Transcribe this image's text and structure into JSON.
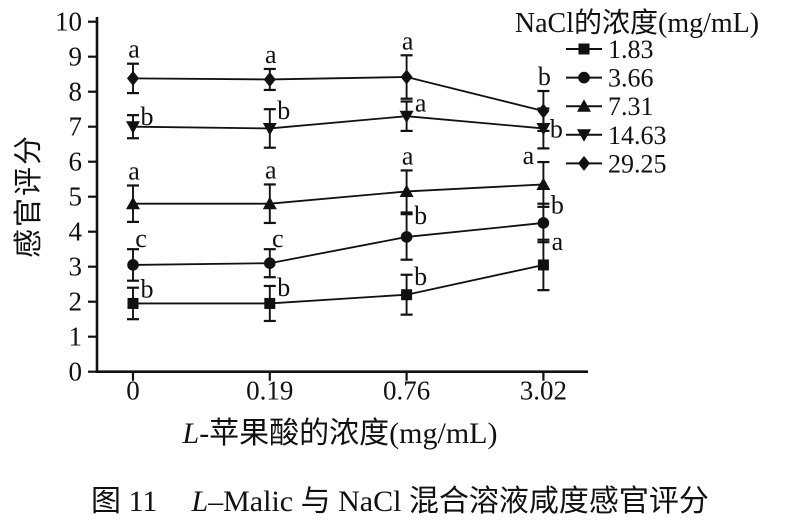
{
  "figure": {
    "caption": {
      "part1": "图 11",
      "italic_part": "L",
      "part2": "–Malic 与 NaCl 混合溶液咸度感官评分"
    }
  },
  "chart_data": {
    "type": "line",
    "title": "",
    "xlabel": {
      "italic": "L",
      "rest": "-苹果酸的浓度(mg/mL)"
    },
    "ylabel": "感官评分",
    "categories": [
      "0",
      "0.19",
      "0.76",
      "3.02"
    ],
    "y_ticks": [
      0,
      1,
      2,
      3,
      4,
      5,
      6,
      7,
      8,
      9,
      10
    ],
    "ylim": [
      0,
      10
    ],
    "grid": false,
    "legend": {
      "title": "NaCl的浓度(mg/mL)",
      "position": "top-right"
    },
    "colors": {
      "line": "#111111",
      "background": "#ffffff"
    },
    "series": [
      {
        "name": "1.83",
        "marker": "square",
        "values": [
          1.95,
          1.95,
          2.2,
          3.05
        ],
        "errors": [
          0.45,
          0.5,
          0.57,
          0.72
        ],
        "sig": [
          {
            "letter": "b",
            "pos": "beside"
          },
          {
            "letter": "b",
            "pos": "beside"
          },
          {
            "letter": "b",
            "pos": "beside"
          },
          {
            "letter": "a",
            "pos": "beside"
          }
        ]
      },
      {
        "name": "3.66",
        "marker": "circle",
        "values": [
          3.05,
          3.1,
          3.85,
          4.25
        ],
        "errors": [
          0.45,
          0.4,
          0.65,
          0.55
        ],
        "sig": [
          {
            "letter": "c",
            "pos": "above-right"
          },
          {
            "letter": "c",
            "pos": "above-right"
          },
          {
            "letter": "b",
            "pos": "beside"
          },
          {
            "letter": "b",
            "pos": "beside"
          }
        ]
      },
      {
        "name": "7.31",
        "marker": "triangle-up",
        "values": [
          4.8,
          4.8,
          5.15,
          5.35
        ],
        "errors": [
          0.52,
          0.55,
          0.6,
          0.64
        ],
        "sig": [
          {
            "letter": "a",
            "pos": "above"
          },
          {
            "letter": "a",
            "pos": "above"
          },
          {
            "letter": "a",
            "pos": "above"
          },
          {
            "letter": "a",
            "pos": "left"
          }
        ]
      },
      {
        "name": "14.63",
        "marker": "triangle-down",
        "values": [
          7.0,
          6.95,
          7.3,
          6.95
        ],
        "errors": [
          0.33,
          0.55,
          0.42,
          0.57
        ],
        "sig": [
          {
            "letter": "b",
            "pos": "beside"
          },
          {
            "letter": "b",
            "pos": "beside"
          },
          {
            "letter": "a",
            "pos": "beside"
          },
          {
            "letter": "b",
            "pos": "right"
          }
        ]
      },
      {
        "name": "29.25",
        "marker": "diamond",
        "values": [
          8.38,
          8.35,
          8.42,
          7.45
        ],
        "errors": [
          0.42,
          0.3,
          0.62,
          0.57
        ],
        "sig": [
          {
            "letter": "a",
            "pos": "above"
          },
          {
            "letter": "a",
            "pos": "above"
          },
          {
            "letter": "a",
            "pos": "above"
          },
          {
            "letter": "b",
            "pos": "above"
          }
        ]
      }
    ]
  }
}
